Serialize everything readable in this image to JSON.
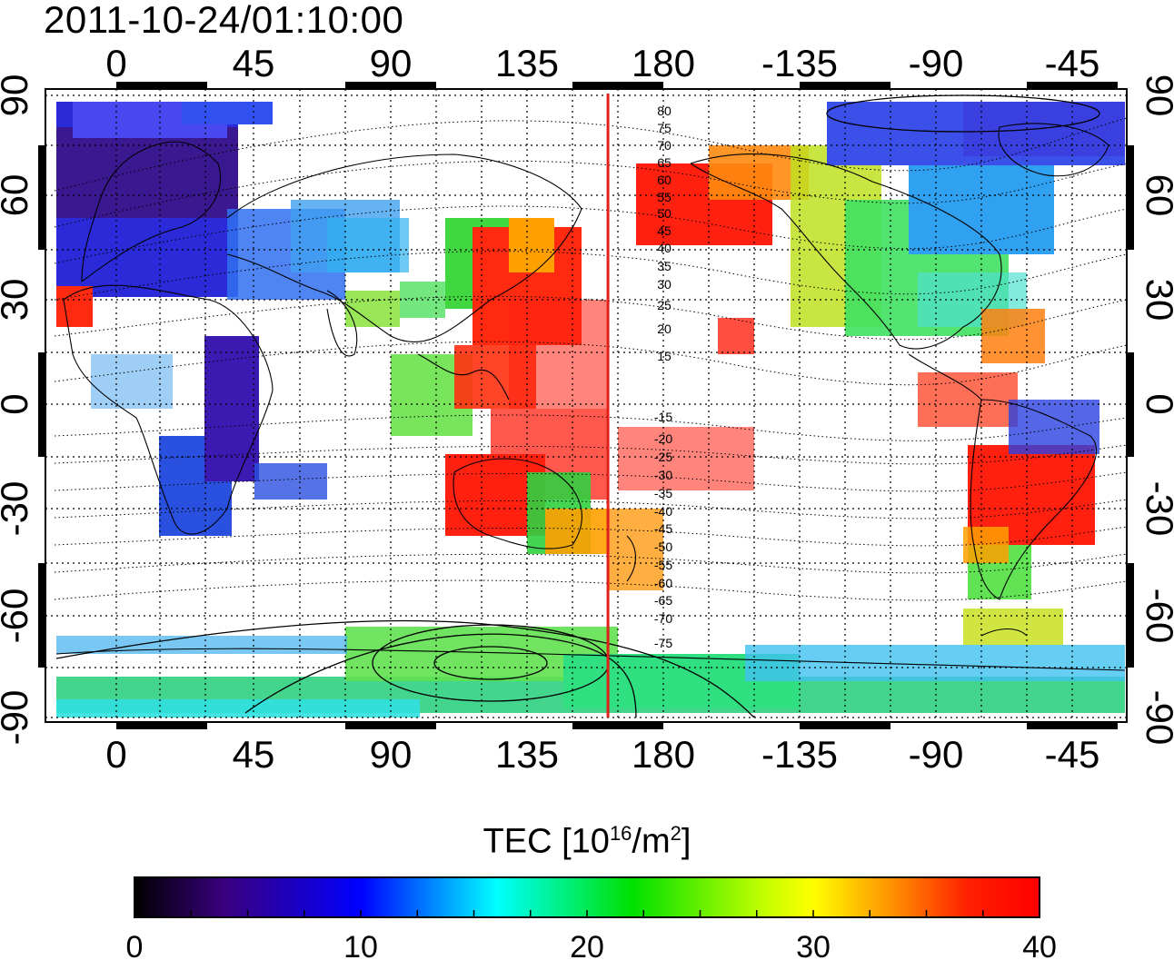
{
  "title": "2011-10-24/01:10:00",
  "map": {
    "top_lon_ticks": [
      "0",
      "45",
      "90",
      "135",
      "180",
      "-135",
      "-90",
      "-45"
    ],
    "bottom_lon_ticks": [
      "0",
      "45",
      "90",
      "135",
      "180",
      "-135",
      "-90",
      "-45"
    ],
    "left_lat_ticks": [
      "90",
      "60",
      "30",
      "0",
      "-30",
      "-60",
      "-90"
    ],
    "right_lat_ticks": [
      "90",
      "60",
      "30",
      "0",
      "-30",
      "-60",
      "-90"
    ],
    "meridian_lon": 162,
    "meridian_color": "#e0201a",
    "magnetic_contour_labels": [
      "80",
      "75",
      "70",
      "65",
      "60",
      "55",
      "50",
      "45",
      "40",
      "35",
      "30",
      "25",
      "20",
      "15",
      "-15",
      "-20",
      "-25",
      "-30",
      "-35",
      "-40",
      "-45",
      "-50",
      "-55",
      "-60",
      "-65",
      "-70",
      "-75"
    ]
  },
  "colorbar": {
    "title_prefix": "TEC  [10",
    "title_exp1": "16",
    "title_mid": "/m",
    "title_exp2": "2",
    "title_suffix": "]",
    "tick_labels": [
      "0",
      "10",
      "20",
      "30",
      "40"
    ],
    "min": 0,
    "max": 40
  }
}
